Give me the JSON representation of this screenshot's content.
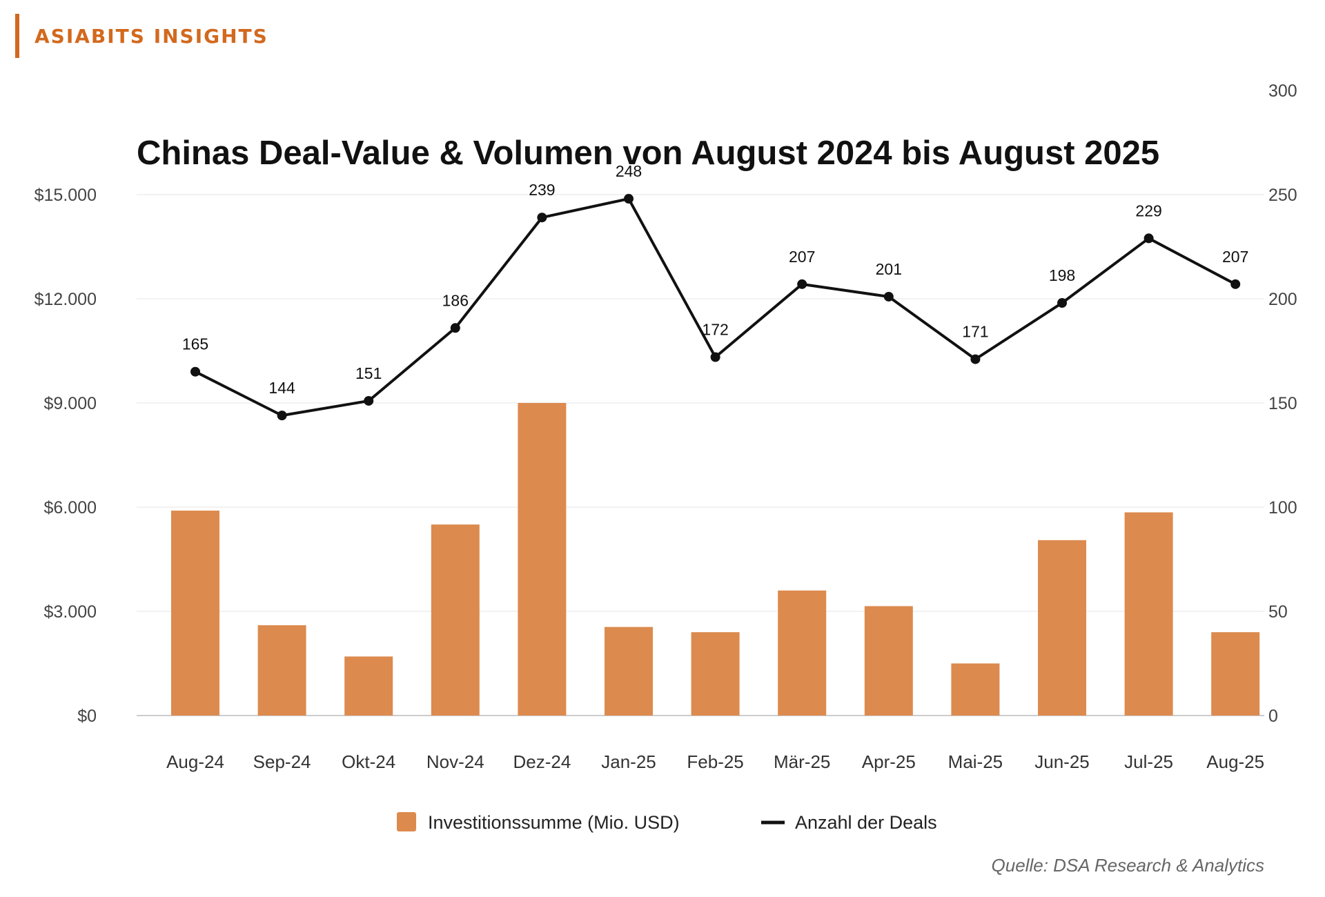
{
  "brand": {
    "label": "ASIABITS INSIGHTS",
    "accent_color": "#d2691e"
  },
  "source": "Quelle: DSA Research & Analytics",
  "colors": {
    "bar": "#dc8a4e",
    "line": "#111111",
    "grid": "#eeeeee"
  },
  "chart_data": {
    "type": "bar",
    "title": "Chinas Deal-Value & Volumen von August 2024 bis August 2025",
    "categories": [
      "Aug-24",
      "Sep-24",
      "Okt-24",
      "Nov-24",
      "Dez-24",
      "Jan-25",
      "Feb-25",
      "Mär-25",
      "Apr-25",
      "Mai-25",
      "Jun-25",
      "Jul-25",
      "Aug-25"
    ],
    "series": [
      {
        "name": "Investitionssumme (Mio. USD)",
        "type": "bar",
        "axis": "left",
        "values": [
          5900,
          2600,
          1700,
          5500,
          9000,
          2550,
          2400,
          3600,
          3150,
          1500,
          5050,
          5850,
          2400
        ]
      },
      {
        "name": "Anzahl der Deals",
        "type": "line",
        "axis": "right",
        "values": [
          165,
          144,
          151,
          186,
          239,
          248,
          172,
          207,
          201,
          171,
          198,
          229,
          207
        ]
      }
    ],
    "y_left": {
      "ticks": [
        0,
        3000,
        6000,
        9000,
        12000,
        15000
      ],
      "tick_labels": [
        "$0",
        "$3.000",
        "$6.000",
        "$9.000",
        "$12.000",
        "$15.000"
      ],
      "ylim": [
        0,
        15000
      ]
    },
    "y_right": {
      "ticks": [
        0,
        50,
        100,
        150,
        200,
        250,
        300
      ],
      "tick_labels": [
        "0",
        "50",
        "100",
        "150",
        "200",
        "250",
        "300"
      ]
    },
    "grid": true,
    "legend_position": "bottom-center"
  }
}
